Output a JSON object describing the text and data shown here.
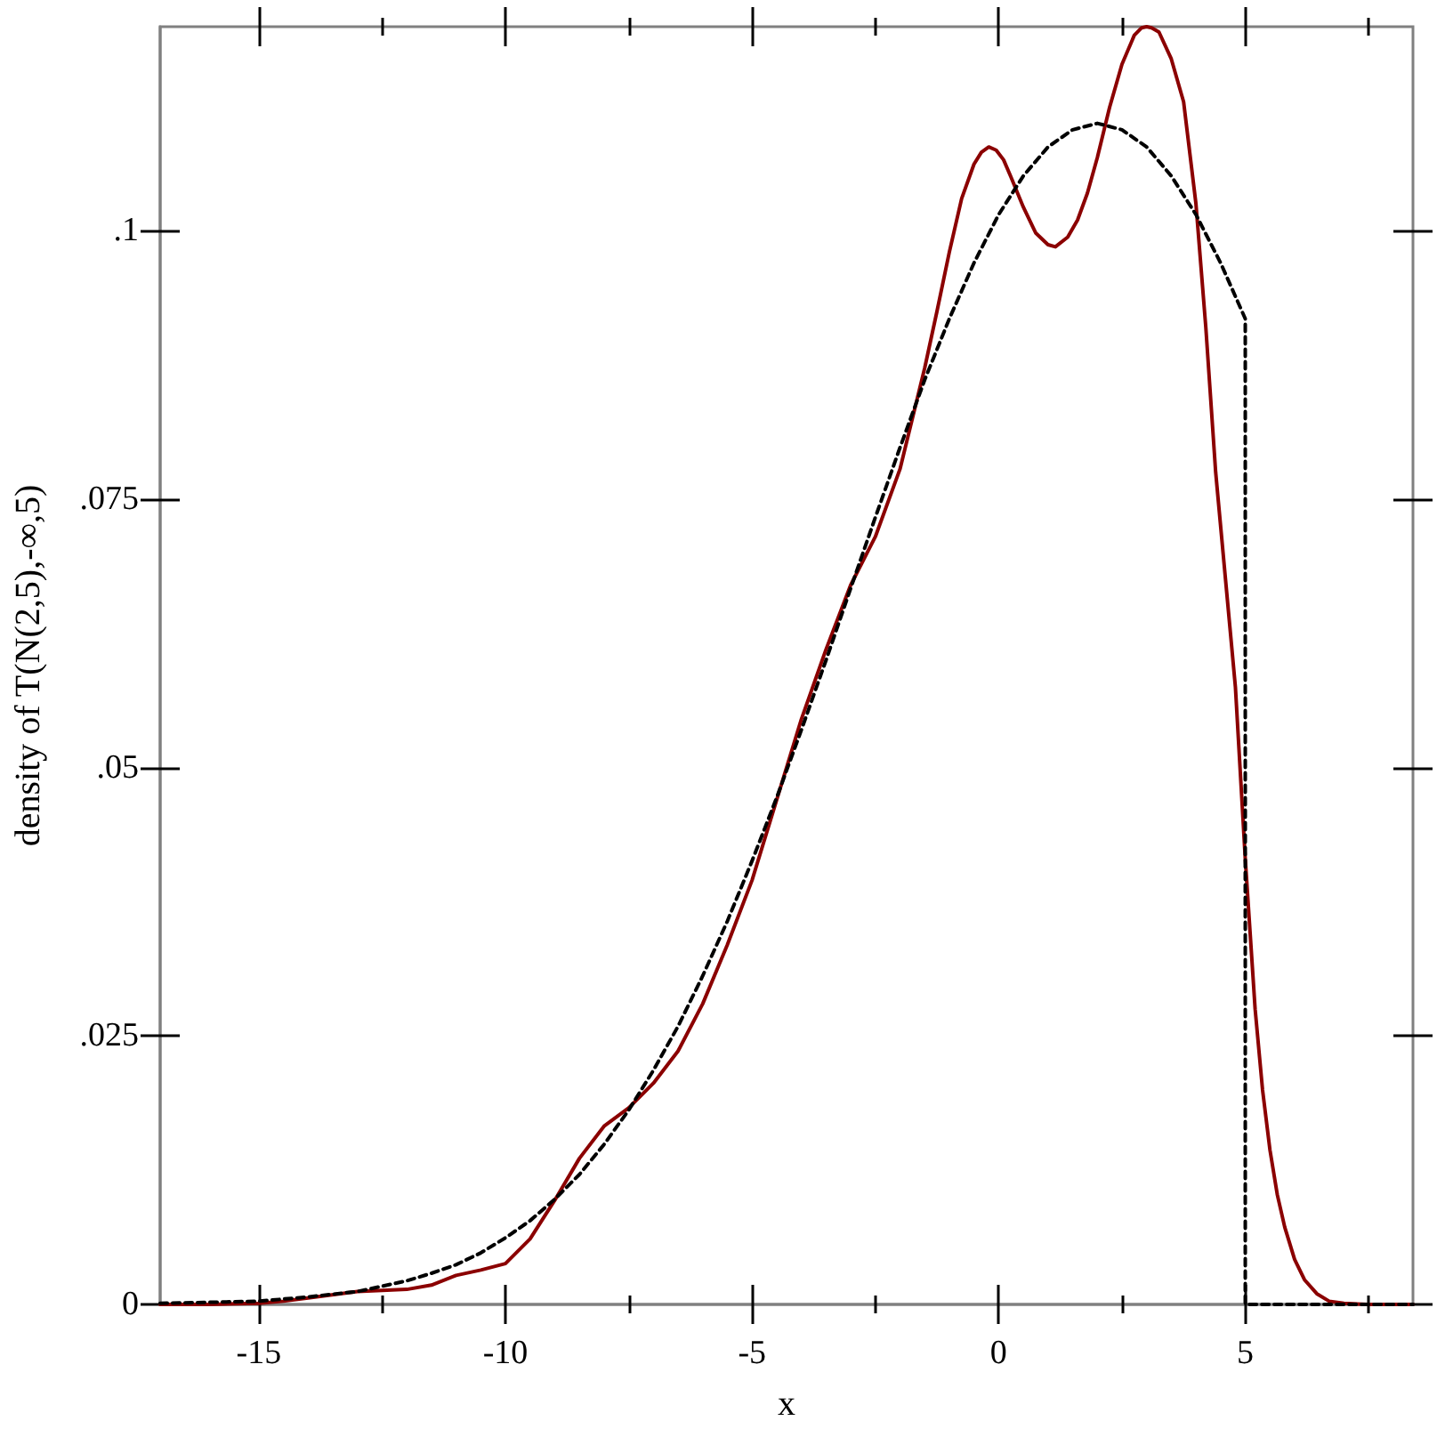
{
  "chart_data": {
    "type": "line",
    "xlabel": "x",
    "ylabel": "density of T(N(2,5),-∞,5)",
    "xlim": [
      -17,
      8.4
    ],
    "ylim": [
      0,
      0.119
    ],
    "xticks": [
      -15,
      {
        "value": -12.5,
        "label": null
      },
      -10,
      {
        "value": -7.5,
        "label": null
      },
      -5,
      {
        "value": -2.5,
        "label": null
      },
      0,
      {
        "value": 2.5,
        "label": null
      },
      5,
      {
        "value": 7.5,
        "label": null
      }
    ],
    "yticks": [
      0,
      {
        "value": 0.025,
        "label": ".025"
      },
      {
        "value": 0.05,
        "label": ".05"
      },
      {
        "value": 0.075,
        "label": ".075"
      },
      {
        "value": 0.1,
        "label": ".1"
      }
    ],
    "grid": false,
    "marker": "none",
    "series": [
      {
        "color": "#8b0000",
        "line_style": "solid",
        "x": [
          -17,
          -16,
          -15,
          -14.5,
          -14,
          -13,
          -12,
          -11.5,
          -11,
          -10.5,
          -10,
          -9.5,
          -9,
          -8.5,
          -8,
          -7.5,
          -7,
          -6.5,
          -6,
          -5.5,
          -5,
          -4.5,
          -4,
          -3.5,
          -3,
          -2.5,
          -2,
          -1.75,
          -1.5,
          -1.25,
          -1,
          -0.75,
          -0.5,
          -0.35,
          -0.2,
          -0.05,
          0.1,
          0.25,
          0.5,
          0.75,
          1,
          1.15,
          1.4,
          1.6,
          1.8,
          2,
          2.25,
          2.5,
          2.75,
          2.9,
          3,
          3.1,
          3.25,
          3.5,
          3.75,
          4,
          4.2,
          4.4,
          4.6,
          4.8,
          5,
          5.2,
          5.35,
          5.5,
          5.65,
          5.8,
          6,
          6.2,
          6.45,
          6.7,
          7,
          7.5,
          8.4
        ],
        "values": [
          0,
          0,
          0.0001,
          0.0003,
          0.0006,
          0.0012,
          0.0014,
          0.0018,
          0.0027,
          0.0032,
          0.0038,
          0.0061,
          0.0097,
          0.0136,
          0.0166,
          0.0183,
          0.0206,
          0.0236,
          0.028,
          0.0335,
          0.0395,
          0.047,
          0.0545,
          0.061,
          0.067,
          0.0715,
          0.0778,
          0.0825,
          0.0872,
          0.0925,
          0.098,
          0.103,
          0.1062,
          0.1073,
          0.1078,
          0.1075,
          0.1066,
          0.105,
          0.1022,
          0.0998,
          0.0987,
          0.0985,
          0.0994,
          0.101,
          0.1035,
          0.1068,
          0.1115,
          0.1155,
          0.1182,
          0.1189,
          0.119,
          0.1189,
          0.1185,
          0.116,
          0.112,
          0.1025,
          0.091,
          0.0775,
          0.0675,
          0.0575,
          0.0415,
          0.0275,
          0.02,
          0.0144,
          0.0102,
          0.0072,
          0.0042,
          0.0023,
          0.001,
          0.0003,
          0.0001,
          0,
          0
        ]
      },
      {
        "color": "#000000",
        "line_style": "dashed",
        "x": [
          -17,
          -16,
          -15,
          -14,
          -13,
          -12,
          -11.5,
          -11,
          -10.5,
          -10,
          -9.5,
          -9,
          -8.5,
          -8,
          -7.5,
          -7,
          -6.5,
          -6,
          -5.5,
          -5,
          -4.5,
          -4,
          -3.5,
          -3,
          -2.5,
          -2,
          -1.5,
          -1,
          -0.5,
          0,
          0.5,
          1,
          1.5,
          2,
          2.5,
          3,
          3.5,
          4,
          4.5,
          5,
          5,
          8.4
        ],
        "values": [
          0.0001,
          0.0002,
          0.0003,
          0.0007,
          0.0012,
          0.0022,
          0.0029,
          0.0037,
          0.0048,
          0.0062,
          0.0078,
          0.0098,
          0.0121,
          0.0149,
          0.0181,
          0.0218,
          0.0259,
          0.0306,
          0.0357,
          0.0413,
          0.0472,
          0.0535,
          0.06,
          0.0667,
          0.0733,
          0.0798,
          0.0861,
          0.0918,
          0.097,
          0.1015,
          0.1051,
          0.1078,
          0.1094,
          0.11,
          0.1094,
          0.1078,
          0.1051,
          0.1015,
          0.097,
          0.0918,
          0,
          0
        ]
      }
    ]
  }
}
